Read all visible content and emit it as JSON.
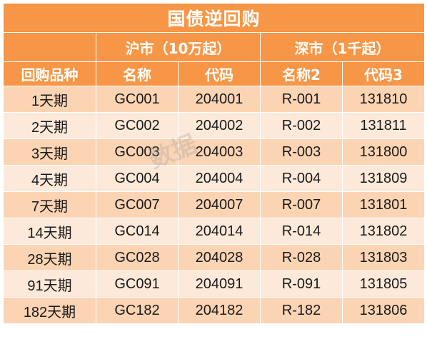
{
  "table": {
    "title": "国债逆回购",
    "groups": {
      "sh": "沪市（10万起）",
      "sz": "深市（1千起）"
    },
    "headers": [
      "回购品种",
      "名称",
      "代码",
      "名称2",
      "代码3"
    ],
    "rows": [
      [
        "1天期",
        "GC001",
        "204001",
        "R-001",
        "131810"
      ],
      [
        "2天期",
        "GC002",
        "204002",
        "R-002",
        "131811"
      ],
      [
        "3天期",
        "GC003",
        "204003",
        "R-003",
        "131800"
      ],
      [
        "4天期",
        "GC004",
        "204004",
        "R-004",
        "131809"
      ],
      [
        "7天期",
        "GC007",
        "204007",
        "R-007",
        "131801"
      ],
      [
        "14天期",
        "GC014",
        "204014",
        "R-014",
        "131802"
      ],
      [
        "28天期",
        "GC028",
        "204028",
        "R-028",
        "131803"
      ],
      [
        "91天期",
        "GC091",
        "204091",
        "R-091",
        "131805"
      ],
      [
        "182天期",
        "GC182",
        "204182",
        "R-182",
        "131806"
      ]
    ]
  },
  "watermark": {
    "text": "数据"
  },
  "colors": {
    "header": "#f79646",
    "row_odd": "#fbd4b4",
    "row_even": "#fde9d9"
  }
}
